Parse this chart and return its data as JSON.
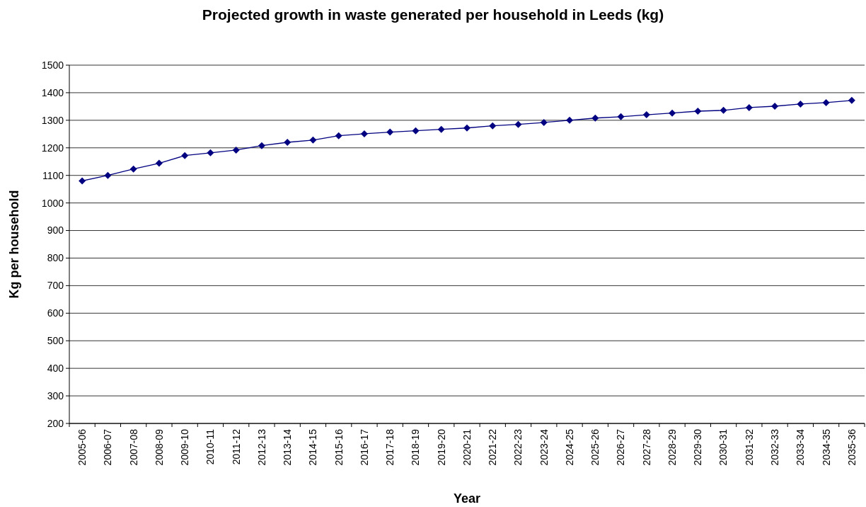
{
  "chart_data": {
    "type": "line",
    "title": "Projected growth in waste generated per household in Leeds (kg)",
    "xlabel": "Year",
    "ylabel": "Kg per household",
    "categories": [
      "2005-06",
      "2006-07",
      "2007-08",
      "2008-09",
      "2009-10",
      "2010-11",
      "2011-12",
      "2012-13",
      "2013-14",
      "2014-15",
      "2015-16",
      "2016-17",
      "2017-18",
      "2018-19",
      "2019-20",
      "2020-21",
      "2021-22",
      "2022-23",
      "2023-24",
      "2024-25",
      "2025-26",
      "2026-27",
      "2027-28",
      "2028-29",
      "2029-30",
      "2030-31",
      "2031-32",
      "2032-33",
      "2033-34",
      "2034-35",
      "2035-36"
    ],
    "series": [
      {
        "color": "#000080",
        "values": [
          1080,
          1100,
          1123,
          1144,
          1172,
          1182,
          1192,
          1208,
          1220,
          1228,
          1244,
          1251,
          1257,
          1262,
          1267,
          1272,
          1280,
          1285,
          1292,
          1300,
          1308,
          1313,
          1320,
          1326,
          1333,
          1336,
          1346,
          1351,
          1359,
          1364,
          1372
        ]
      }
    ],
    "ylim": [
      200,
      1500
    ],
    "yticks": [
      200,
      300,
      400,
      500,
      600,
      700,
      800,
      900,
      1000,
      1100,
      1200,
      1300,
      1400,
      1500
    ],
    "grid": "y",
    "marker": "diamond",
    "line_style": "solid"
  }
}
